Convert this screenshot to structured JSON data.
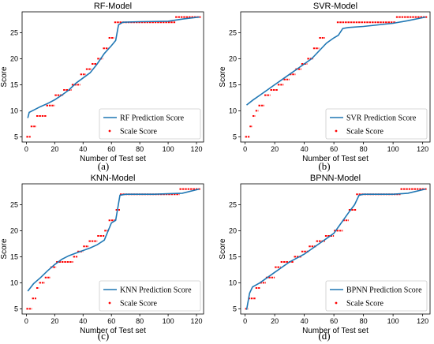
{
  "chart_data": [
    {
      "type": "line",
      "title": "RF-Model",
      "caption": "(a)",
      "xlabel": "Number of Test set",
      "ylabel": "Score",
      "xlim": [
        -3,
        125
      ],
      "ylim": [
        4,
        29
      ],
      "xticks": [
        0,
        20,
        40,
        60,
        80,
        100,
        120
      ],
      "yticks": [
        5,
        10,
        15,
        20,
        25
      ],
      "legend_position": "lower-right",
      "series": [
        {
          "name": "RF Prediction Score",
          "style": "line",
          "color": "#1f77b4",
          "points": [
            [
              1,
              8.6
            ],
            [
              2,
              9.7
            ],
            [
              5,
              10.1
            ],
            [
              10,
              10.8
            ],
            [
              15,
              11.4
            ],
            [
              20,
              12.1
            ],
            [
              25,
              13.0
            ],
            [
              30,
              14.0
            ],
            [
              35,
              15.3
            ],
            [
              40,
              16.3
            ],
            [
              45,
              17.3
            ],
            [
              50,
              19.0
            ],
            [
              55,
              21.0
            ],
            [
              60,
              22.5
            ],
            [
              63,
              23.5
            ],
            [
              65,
              26.5
            ],
            [
              68,
              27.0
            ],
            [
              80,
              27.1
            ],
            [
              100,
              27.2
            ],
            [
              110,
              27.6
            ],
            [
              122,
              28.0
            ]
          ]
        },
        {
          "name": "Scale Score",
          "style": "markers",
          "color": "#ff0000",
          "runs": [
            [
              0,
              3,
              5
            ],
            [
              3,
              7,
              7
            ],
            [
              7,
              14,
              9
            ],
            [
              14,
              20,
              11
            ],
            [
              20,
              26,
              13
            ],
            [
              26,
              32,
              14
            ],
            [
              32,
              38,
              15
            ],
            [
              38,
              42,
              17
            ],
            [
              42,
              46,
              18
            ],
            [
              46,
              50,
              19
            ],
            [
              50,
              54,
              20
            ],
            [
              54,
              58,
              22
            ],
            [
              58,
              62,
              24
            ],
            [
              62,
              105,
              27
            ],
            [
              105,
              123,
              28
            ]
          ]
        }
      ]
    },
    {
      "type": "line",
      "title": "SVR-Model",
      "caption": "(b)",
      "xlabel": "Number of Test set",
      "ylabel": "Score",
      "xlim": [
        -3,
        125
      ],
      "ylim": [
        4,
        29
      ],
      "xticks": [
        0,
        20,
        40,
        60,
        80,
        100,
        120
      ],
      "yticks": [
        5,
        10,
        15,
        20,
        25
      ],
      "legend_position": "lower-right",
      "series": [
        {
          "name": "SVR Prediction Score",
          "style": "line",
          "color": "#1f77b4",
          "points": [
            [
              1,
              11.1
            ],
            [
              5,
              12.0
            ],
            [
              10,
              13.0
            ],
            [
              15,
              14.0
            ],
            [
              20,
              15.0
            ],
            [
              25,
              16.0
            ],
            [
              30,
              17.0
            ],
            [
              35,
              18.0
            ],
            [
              40,
              19.0
            ],
            [
              45,
              20.0
            ],
            [
              50,
              21.5
            ],
            [
              55,
              23.0
            ],
            [
              60,
              24.0
            ],
            [
              63,
              24.5
            ],
            [
              66,
              25.8
            ],
            [
              70,
              26.0
            ],
            [
              80,
              26.2
            ],
            [
              100,
              26.8
            ],
            [
              110,
              27.3
            ],
            [
              122,
              28.0
            ]
          ]
        },
        {
          "name": "Scale Score",
          "style": "markers",
          "color": "#ff0000",
          "runs": [
            [
              0,
              3,
              5
            ],
            [
              3,
              5,
              7
            ],
            [
              5,
              7,
              9
            ],
            [
              7,
              9,
              10
            ],
            [
              9,
              13,
              11
            ],
            [
              13,
              17,
              13
            ],
            [
              17,
              22,
              14
            ],
            [
              22,
              26,
              15
            ],
            [
              26,
              30,
              16
            ],
            [
              30,
              34,
              17
            ],
            [
              34,
              38,
              18
            ],
            [
              38,
              42,
              19
            ],
            [
              42,
              46,
              20
            ],
            [
              46,
              50,
              22
            ],
            [
              50,
              54,
              24
            ],
            [
              62,
              102,
              27
            ],
            [
              102,
              123,
              28
            ]
          ]
        }
      ]
    },
    {
      "type": "line",
      "title": "KNN-Model",
      "caption": "(c)",
      "xlabel": "Number of Test set",
      "ylabel": "Score",
      "xlim": [
        -3,
        125
      ],
      "ylim": [
        4,
        29
      ],
      "xticks": [
        0,
        20,
        40,
        60,
        80,
        100,
        120
      ],
      "yticks": [
        5,
        10,
        15,
        20,
        25
      ],
      "legend_position": "lower-right",
      "series": [
        {
          "name": "KNN Prediction Score",
          "style": "line",
          "color": "#1f77b4",
          "points": [
            [
              1,
              8.4
            ],
            [
              5,
              9.8
            ],
            [
              10,
              11.0
            ],
            [
              15,
              12.3
            ],
            [
              20,
              13.5
            ],
            [
              25,
              14.5
            ],
            [
              30,
              15.2
            ],
            [
              35,
              15.7
            ],
            [
              40,
              16.2
            ],
            [
              45,
              16.7
            ],
            [
              50,
              17.3
            ],
            [
              55,
              18.2
            ],
            [
              60,
              21.5
            ],
            [
              63,
              22.0
            ],
            [
              66,
              26.8
            ],
            [
              70,
              27.0
            ],
            [
              90,
              27.0
            ],
            [
              110,
              27.2
            ],
            [
              122,
              28.0
            ]
          ]
        },
        {
          "name": "Scale Score",
          "style": "markers",
          "color": "#ff0000",
          "runs": [
            [
              0,
              4,
              5
            ],
            [
              4,
              7,
              7
            ],
            [
              7,
              9,
              9
            ],
            [
              9,
              13,
              10
            ],
            [
              13,
              17,
              11
            ],
            [
              17,
              21,
              13
            ],
            [
              21,
              33,
              14
            ],
            [
              33,
              36,
              15
            ],
            [
              36,
              40,
              16
            ],
            [
              40,
              44,
              17
            ],
            [
              44,
              50,
              18
            ],
            [
              50,
              55,
              19
            ],
            [
              55,
              58,
              20
            ],
            [
              58,
              63,
              22
            ],
            [
              63,
              66,
              24
            ],
            [
              66,
              108,
              27
            ],
            [
              108,
              123,
              28
            ]
          ]
        }
      ]
    },
    {
      "type": "line",
      "title": "BPNN-Model",
      "caption": "(d)",
      "xlabel": "Number of Test set",
      "ylabel": "Score",
      "xlim": [
        -3,
        125
      ],
      "ylim": [
        4,
        29
      ],
      "xticks": [
        0,
        20,
        40,
        60,
        80,
        100,
        120
      ],
      "yticks": [
        5,
        10,
        15,
        20,
        25
      ],
      "legend_position": "lower-right",
      "series": [
        {
          "name": "BPNN Prediction Score",
          "style": "line",
          "color": "#1f77b4",
          "points": [
            [
              1,
              4.8
            ],
            [
              3,
              8.0
            ],
            [
              5,
              9.2
            ],
            [
              10,
              10.0
            ],
            [
              20,
              12.0
            ],
            [
              30,
              14.0
            ],
            [
              40,
              15.5
            ],
            [
              50,
              17.5
            ],
            [
              55,
              18.5
            ],
            [
              60,
              19.5
            ],
            [
              65,
              21.5
            ],
            [
              70,
              23.5
            ],
            [
              74,
              25.0
            ],
            [
              77,
              26.8
            ],
            [
              80,
              27.0
            ],
            [
              100,
              27.0
            ],
            [
              110,
              27.2
            ],
            [
              122,
              28.0
            ]
          ]
        },
        {
          "name": "Scale Score",
          "style": "markers",
          "color": "#ff0000",
          "runs": [
            [
              0,
              2,
              5
            ],
            [
              2,
              7,
              7
            ],
            [
              7,
              10,
              9
            ],
            [
              10,
              14,
              10
            ],
            [
              14,
              20,
              11
            ],
            [
              20,
              24,
              13
            ],
            [
              24,
              33,
              14
            ],
            [
              33,
              38,
              15
            ],
            [
              38,
              43,
              16
            ],
            [
              43,
              48,
              17
            ],
            [
              48,
              54,
              18
            ],
            [
              54,
              60,
              19
            ],
            [
              60,
              66,
              20
            ],
            [
              66,
              70,
              22
            ],
            [
              70,
              75,
              24
            ],
            [
              75,
              105,
              27
            ],
            [
              105,
              123,
              28
            ]
          ]
        }
      ]
    }
  ]
}
